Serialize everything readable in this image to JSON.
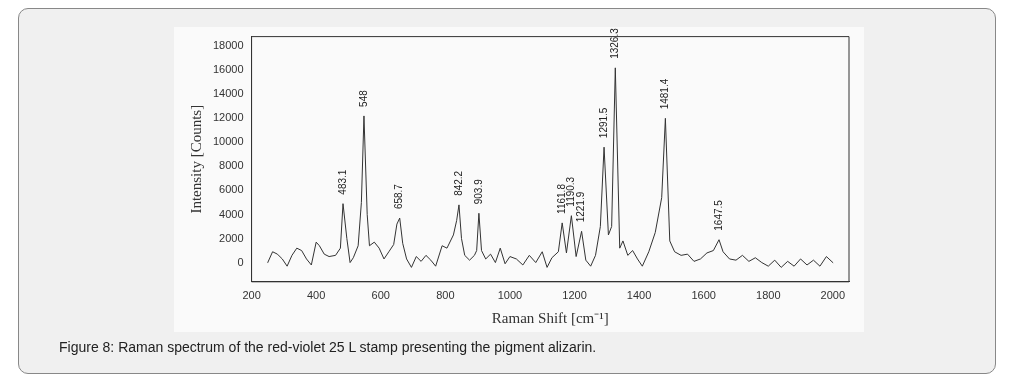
{
  "chart_data": {
    "type": "line",
    "xlabel": "Raman Shift [cm⁻¹]",
    "ylabel": "Intensity [Counts]",
    "color": "#333333",
    "marker": "none",
    "grid": false,
    "legend": false,
    "xlim": [
      200,
      2050
    ],
    "xticks": [
      200,
      400,
      600,
      800,
      1000,
      1200,
      1400,
      1600,
      1800,
      2000
    ],
    "ylim": [
      -1600,
      18800
    ],
    "yticks": [
      0,
      2000,
      4000,
      6000,
      8000,
      10000,
      12000,
      14000,
      16000,
      18000
    ],
    "x": [
      250,
      265,
      280,
      295,
      310,
      325,
      340,
      355,
      370,
      385,
      400,
      410,
      425,
      440,
      460,
      475,
      483.1,
      495,
      505,
      515,
      530,
      540,
      548,
      558,
      565,
      580,
      595,
      610,
      625,
      640,
      650,
      658.7,
      668,
      680,
      695,
      710,
      725,
      740,
      755,
      770,
      790,
      805,
      825,
      835,
      842.2,
      850,
      860,
      875,
      890,
      897,
      903.9,
      912,
      925,
      940,
      955,
      970,
      985,
      1000,
      1020,
      1040,
      1060,
      1080,
      1100,
      1115,
      1130,
      1150,
      1161.8,
      1175,
      1190.3,
      1205,
      1221.9,
      1235,
      1250,
      1265,
      1280,
      1291.5,
      1305,
      1315,
      1326.3,
      1340,
      1350,
      1365,
      1380,
      1395,
      1410,
      1430,
      1450,
      1470,
      1481.4,
      1495,
      1510,
      1530,
      1550,
      1570,
      1590,
      1610,
      1630,
      1647.5,
      1660,
      1680,
      1700,
      1720,
      1740,
      1760,
      1780,
      1800,
      1820,
      1840,
      1860,
      1880,
      1900,
      1920,
      1940,
      1960,
      1980,
      2000
    ],
    "values": [
      0,
      900,
      700,
      300,
      -300,
      600,
      1200,
      1000,
      300,
      -200,
      1700,
      1400,
      700,
      500,
      600,
      1200,
      4900,
      2000,
      0,
      400,
      1400,
      5000,
      12200,
      4000,
      1400,
      1700,
      1200,
      300,
      900,
      1500,
      3200,
      3700,
      1600,
      300,
      -400,
      500,
      100,
      600,
      200,
      -300,
      1400,
      1200,
      2300,
      3500,
      4800,
      2000,
      600,
      200,
      600,
      1000,
      4100,
      1000,
      300,
      700,
      0,
      1200,
      -100,
      500,
      300,
      -200,
      600,
      0,
      900,
      -400,
      400,
      900,
      3300,
      800,
      3900,
      500,
      2600,
      200,
      -300,
      600,
      3000,
      9600,
      2300,
      3000,
      16200,
      1200,
      1800,
      600,
      1000,
      300,
      -300,
      900,
      2500,
      5400,
      12000,
      1800,
      900,
      600,
      700,
      100,
      300,
      800,
      1000,
      1900,
      900,
      300,
      200,
      600,
      100,
      400,
      0,
      -300,
      200,
      -400,
      100,
      -300,
      300,
      -200,
      200,
      -300,
      500,
      0
    ],
    "annotations": [
      {
        "text": "483.1",
        "x": 483.1,
        "y": 4900
      },
      {
        "text": "548",
        "x": 548,
        "y": 12200
      },
      {
        "text": "658.7",
        "x": 658.7,
        "y": 3700
      },
      {
        "text": "842.2",
        "x": 842.2,
        "y": 4800
      },
      {
        "text": "903.9",
        "x": 903.9,
        "y": 4100
      },
      {
        "text": "1161.8",
        "x": 1161.8,
        "y": 3300
      },
      {
        "text": "1190.3",
        "x": 1190.3,
        "y": 3900
      },
      {
        "text": "1221.9",
        "x": 1221.9,
        "y": 2600
      },
      {
        "text": "1291.5",
        "x": 1291.5,
        "y": 9600
      },
      {
        "text": "1326.3",
        "x": 1326.3,
        "y": 16200
      },
      {
        "text": "1481.4",
        "x": 1481.4,
        "y": 12000
      },
      {
        "text": "1647.5",
        "x": 1647.5,
        "y": 1900
      },
      "Figure 8: Raman spectrum of the red-violet 25 L stamp presenting the pigment alizarin."
    ]
  }
}
